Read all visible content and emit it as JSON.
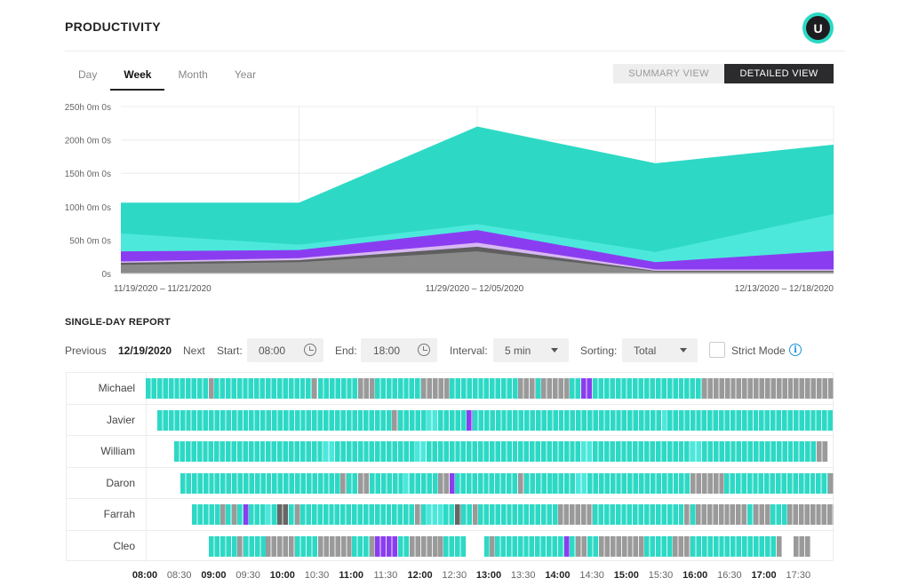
{
  "app": {
    "title": "PRODUCTIVITY",
    "avatar_initial": "U"
  },
  "tabs": [
    {
      "label": "Day",
      "active": false
    },
    {
      "label": "Week",
      "active": true
    },
    {
      "label": "Month",
      "active": false
    },
    {
      "label": "Year",
      "active": false
    }
  ],
  "view_toggle": {
    "summary": "SUMMARY VIEW",
    "detailed": "DETAILED VIEW",
    "selected": "DETAILED VIEW"
  },
  "colors": {
    "teal": "#2dd9c5",
    "light_teal": "#4de8dc",
    "purple": "#8a3df0",
    "lilac": "#d7b8f2",
    "dark_gray": "#666666",
    "gray": "#9a9a9a"
  },
  "chart_data": {
    "type": "area",
    "x_labels": [
      "11/19/2020 – 11/21/2020",
      "11/29/2020 – 12/05/2020",
      "12/13/2020 – 12/18/2020"
    ],
    "y_ticks": [
      "250h 0m 0s",
      "200h 0m 0s",
      "150h 0m 0s",
      "100h 0m 0s",
      "50h 0m 0s",
      "0s"
    ],
    "ylim": [
      0,
      250
    ],
    "points": 5,
    "grid": true,
    "stacked_series_tops_hours": [
      [
        13,
        17,
        33,
        3,
        3
      ],
      [
        16,
        20,
        40,
        4,
        4
      ],
      [
        18,
        23,
        46,
        6,
        6
      ],
      [
        33,
        35,
        65,
        17,
        34
      ],
      [
        60,
        43,
        74,
        32,
        89
      ],
      [
        106,
        106,
        220,
        165,
        193
      ]
    ],
    "series_colors": [
      "#8a8a8a",
      "#5f5f5f",
      "#d7b8f2",
      "#8a3df0",
      "#4de8dc",
      "#2dd9c5"
    ]
  },
  "report": {
    "title": "SINGLE-DAY REPORT",
    "previous": "Previous",
    "date": "12/19/2020",
    "next": "Next",
    "start_label": "Start:",
    "start_value": "08:00",
    "end_label": "End:",
    "end_value": "18:00",
    "interval_label": "Interval:",
    "interval_value": "5 min",
    "sorting_label": "Sorting:",
    "sorting_value": "Total",
    "strict_mode": "Strict Mode",
    "info_glyph": "i"
  },
  "timeline": {
    "start_hour": 8,
    "end_hour": 18,
    "ticks": [
      {
        "label": "08:00",
        "bold": true
      },
      {
        "label": "08:30",
        "bold": false
      },
      {
        "label": "09:00",
        "bold": true
      },
      {
        "label": "09:30",
        "bold": false
      },
      {
        "label": "10:00",
        "bold": true
      },
      {
        "label": "10:30",
        "bold": false
      },
      {
        "label": "11:00",
        "bold": true
      },
      {
        "label": "11:30",
        "bold": false
      },
      {
        "label": "12:00",
        "bold": true
      },
      {
        "label": "12:30",
        "bold": false
      },
      {
        "label": "13:00",
        "bold": true
      },
      {
        "label": "13:30",
        "bold": false
      },
      {
        "label": "14:00",
        "bold": true
      },
      {
        "label": "14:30",
        "bold": false
      },
      {
        "label": "15:00",
        "bold": true
      },
      {
        "label": "15:30",
        "bold": false
      },
      {
        "label": "16:00",
        "bold": true
      },
      {
        "label": "16:30",
        "bold": false
      },
      {
        "label": "17:00",
        "bold": true
      },
      {
        "label": "17:30",
        "bold": false
      }
    ],
    "users": [
      {
        "name": "Michael",
        "segments": [
          [
            "t",
            "08:00",
            "08:55"
          ],
          [
            "g",
            "08:55",
            "09:00"
          ],
          [
            "t",
            "09:00",
            "10:25"
          ],
          [
            "g",
            "10:25",
            "10:30"
          ],
          [
            "t",
            "10:30",
            "11:05"
          ],
          [
            "g",
            "11:05",
            "11:20"
          ],
          [
            "t",
            "11:20",
            "12:00"
          ],
          [
            "g",
            "12:00",
            "12:25"
          ],
          [
            "t",
            "12:25",
            "13:25"
          ],
          [
            "g",
            "13:25",
            "13:40"
          ],
          [
            "t",
            "13:40",
            "13:45"
          ],
          [
            "g",
            "13:45",
            "14:10"
          ],
          [
            "t",
            "14:10",
            "14:20"
          ],
          [
            "p",
            "14:20",
            "14:30"
          ],
          [
            "t",
            "14:30",
            "16:05"
          ],
          [
            "g",
            "16:05",
            "18:00"
          ]
        ]
      },
      {
        "name": "Javier",
        "segments": [
          [
            "t",
            "08:10",
            "11:35"
          ],
          [
            "g",
            "11:35",
            "11:40"
          ],
          [
            "t",
            "11:40",
            "12:05"
          ],
          [
            "l",
            "12:05",
            "12:15"
          ],
          [
            "t",
            "12:15",
            "12:40"
          ],
          [
            "p",
            "12:40",
            "12:45"
          ],
          [
            "t",
            "12:45",
            "15:30"
          ],
          [
            "l",
            "15:30",
            "15:35"
          ],
          [
            "t",
            "15:35",
            "18:00"
          ]
        ]
      },
      {
        "name": "William",
        "segments": [
          [
            "t",
            "08:25",
            "10:35"
          ],
          [
            "l",
            "10:35",
            "10:45"
          ],
          [
            "t",
            "10:45",
            "11:55"
          ],
          [
            "l",
            "11:55",
            "12:05"
          ],
          [
            "t",
            "12:05",
            "14:20"
          ],
          [
            "l",
            "14:20",
            "14:30"
          ],
          [
            "t",
            "14:30",
            "15:55"
          ],
          [
            "l",
            "15:55",
            "16:05"
          ],
          [
            "t",
            "16:05",
            "17:45"
          ],
          [
            "g",
            "17:45",
            "17:55"
          ]
        ]
      },
      {
        "name": "Daron",
        "segments": [
          [
            "t",
            "08:30",
            "10:50"
          ],
          [
            "g",
            "10:50",
            "10:55"
          ],
          [
            "t",
            "10:55",
            "11:05"
          ],
          [
            "g",
            "11:05",
            "11:15"
          ],
          [
            "t",
            "11:15",
            "11:45"
          ],
          [
            "l",
            "11:45",
            "11:50"
          ],
          [
            "t",
            "11:50",
            "12:15"
          ],
          [
            "g",
            "12:15",
            "12:25"
          ],
          [
            "p",
            "12:25",
            "12:30"
          ],
          [
            "t",
            "12:30",
            "13:25"
          ],
          [
            "g",
            "13:25",
            "13:30"
          ],
          [
            "t",
            "13:30",
            "14:15"
          ],
          [
            "l",
            "14:15",
            "14:25"
          ],
          [
            "t",
            "14:25",
            "15:55"
          ],
          [
            "g",
            "15:55",
            "16:25"
          ],
          [
            "t",
            "16:25",
            "17:55"
          ],
          [
            "g",
            "17:55",
            "18:00"
          ]
        ]
      },
      {
        "name": "Farrah",
        "segments": [
          [
            "t",
            "08:40",
            "09:05"
          ],
          [
            "g",
            "09:05",
            "09:10"
          ],
          [
            "t",
            "09:10",
            "09:15"
          ],
          [
            "g",
            "09:15",
            "09:20"
          ],
          [
            "t",
            "09:20",
            "09:25"
          ],
          [
            "p",
            "09:25",
            "09:30"
          ],
          [
            "t",
            "09:30",
            "09:45"
          ],
          [
            "l",
            "09:45",
            "09:50"
          ],
          [
            "t",
            "09:50",
            "09:55"
          ],
          [
            "d",
            "09:55",
            "10:05"
          ],
          [
            "t",
            "10:05",
            "10:10"
          ],
          [
            "g",
            "10:10",
            "10:15"
          ],
          [
            "t",
            "10:15",
            "11:55"
          ],
          [
            "g",
            "11:55",
            "12:00"
          ],
          [
            "t",
            "12:00",
            "12:05"
          ],
          [
            "l",
            "12:05",
            "12:20"
          ],
          [
            "t",
            "12:20",
            "12:30"
          ],
          [
            "d",
            "12:30",
            "12:35"
          ],
          [
            "t",
            "12:35",
            "12:45"
          ],
          [
            "g",
            "12:45",
            "12:50"
          ],
          [
            "t",
            "12:50",
            "14:00"
          ],
          [
            "g",
            "14:00",
            "14:30"
          ],
          [
            "t",
            "14:30",
            "15:50"
          ],
          [
            "g",
            "15:50",
            "15:55"
          ],
          [
            "t",
            "15:55",
            "16:00"
          ],
          [
            "g",
            "16:00",
            "16:45"
          ],
          [
            "t",
            "16:45",
            "16:50"
          ],
          [
            "g",
            "16:50",
            "17:05"
          ],
          [
            "t",
            "17:05",
            "17:20"
          ],
          [
            "g",
            "17:20",
            "18:00"
          ]
        ]
      },
      {
        "name": "Cleo",
        "segments": [
          [
            "t",
            "08:55",
            "09:20"
          ],
          [
            "g",
            "09:20",
            "09:25"
          ],
          [
            "t",
            "09:25",
            "09:45"
          ],
          [
            "g",
            "09:45",
            "10:10"
          ],
          [
            "t",
            "10:10",
            "10:30"
          ],
          [
            "g",
            "10:30",
            "11:00"
          ],
          [
            "t",
            "11:00",
            "11:15"
          ],
          [
            "g",
            "11:15",
            "11:20"
          ],
          [
            "p",
            "11:20",
            "11:40"
          ],
          [
            "t",
            "11:40",
            "11:50"
          ],
          [
            "g",
            "11:50",
            "12:20"
          ],
          [
            "t",
            "12:20",
            "12:40"
          ],
          [
            "t",
            "12:55",
            "13:00"
          ],
          [
            "g",
            "13:00",
            "13:05"
          ],
          [
            "t",
            "13:05",
            "14:05"
          ],
          [
            "p",
            "14:05",
            "14:10"
          ],
          [
            "t",
            "14:10",
            "14:15"
          ],
          [
            "g",
            "14:15",
            "14:25"
          ],
          [
            "t",
            "14:25",
            "14:35"
          ],
          [
            "g",
            "14:35",
            "15:15"
          ],
          [
            "t",
            "15:15",
            "15:40"
          ],
          [
            "g",
            "15:40",
            "15:55"
          ],
          [
            "t",
            "15:55",
            "17:10"
          ],
          [
            "g",
            "17:10",
            "17:15"
          ],
          [
            "g",
            "17:25",
            "17:40"
          ]
        ]
      }
    ]
  }
}
